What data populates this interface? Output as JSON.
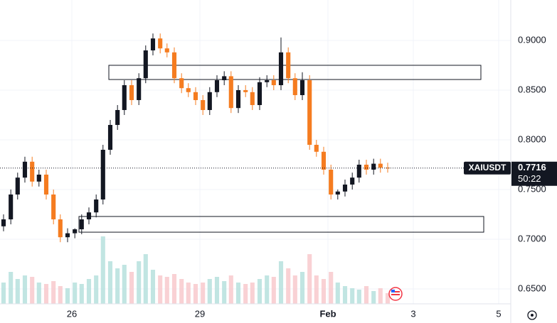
{
  "chart_data": {
    "type": "candlestick",
    "symbol": "XAIUSDT",
    "last_price": {
      "value": 0.7716,
      "label": "0.7716"
    },
    "countdown": "50:22",
    "up_color": "#131722",
    "down_color": "#f57c20",
    "grid": true,
    "xlim": [
      24.317,
      36.283
    ],
    "xticks": [
      26,
      29,
      {
        "value": 32,
        "label": "Feb"
      },
      {
        "value": 34,
        "label": "3"
      },
      {
        "value": 36,
        "label": "5"
      }
    ],
    "ylim": [
      0.635,
      0.9407
    ],
    "yticks": [
      {
        "value": 0.65,
        "label": "0.6500"
      },
      {
        "value": 0.7,
        "label": "0.7000"
      },
      {
        "value": 0.75,
        "label": "0.7500"
      },
      {
        "value": 0.8,
        "label": "0.8000"
      },
      {
        "value": 0.85,
        "label": "0.8500"
      },
      {
        "value": 0.9,
        "label": "0.9000"
      }
    ],
    "vlim": [
      0,
      120
    ],
    "x": [
      24.4,
      24.57,
      24.73,
      24.9,
      25.07,
      25.23,
      25.4,
      25.57,
      25.73,
      25.9,
      26.07,
      26.23,
      26.4,
      26.57,
      26.73,
      26.9,
      27.07,
      27.23,
      27.4,
      27.57,
      27.73,
      27.9,
      28.07,
      28.23,
      28.4,
      28.57,
      28.73,
      28.9,
      29.07,
      29.23,
      29.4,
      29.57,
      29.73,
      29.9,
      30.07,
      30.23,
      30.4,
      30.57,
      30.73,
      30.9,
      31.07,
      31.23,
      31.4,
      31.57,
      31.73,
      31.9,
      32.07,
      32.23,
      32.4,
      32.57,
      32.73,
      32.9,
      33.07,
      33.23,
      33.4
    ],
    "open": [
      0.713,
      0.72,
      0.745,
      0.762,
      0.778,
      0.758,
      0.765,
      0.745,
      0.72,
      0.702,
      0.706,
      0.71,
      0.72,
      0.727,
      0.74,
      0.79,
      0.815,
      0.83,
      0.855,
      0.84,
      0.862,
      0.89,
      0.902,
      0.892,
      0.888,
      0.862,
      0.852,
      0.848,
      0.84,
      0.83,
      0.848,
      0.86,
      0.864,
      0.832,
      0.85,
      0.848,
      0.835,
      0.858,
      0.86,
      0.855,
      0.888,
      0.862,
      0.845,
      0.86,
      0.795,
      0.788,
      0.77,
      0.745,
      0.748,
      0.755,
      0.762,
      0.775,
      0.77,
      0.776,
      0.772
    ],
    "high": [
      0.725,
      0.75,
      0.767,
      0.783,
      0.783,
      0.77,
      0.77,
      0.75,
      0.725,
      0.711,
      0.711,
      0.725,
      0.732,
      0.745,
      0.795,
      0.82,
      0.835,
      0.86,
      0.86,
      0.867,
      0.895,
      0.907,
      0.907,
      0.897,
      0.893,
      0.867,
      0.857,
      0.853,
      0.845,
      0.853,
      0.865,
      0.869,
      0.869,
      0.855,
      0.855,
      0.853,
      0.863,
      0.865,
      0.865,
      0.903,
      0.893,
      0.867,
      0.868,
      0.865,
      0.8,
      0.793,
      0.775,
      0.75,
      0.76,
      0.767,
      0.78,
      0.78,
      0.781,
      0.781,
      0.777
    ],
    "low": [
      0.708,
      0.715,
      0.74,
      0.757,
      0.753,
      0.753,
      0.74,
      0.715,
      0.697,
      0.697,
      0.701,
      0.705,
      0.715,
      0.722,
      0.735,
      0.785,
      0.81,
      0.825,
      0.835,
      0.835,
      0.857,
      0.885,
      0.887,
      0.883,
      0.857,
      0.847,
      0.843,
      0.835,
      0.825,
      0.825,
      0.843,
      0.855,
      0.827,
      0.827,
      0.843,
      0.83,
      0.83,
      0.853,
      0.85,
      0.85,
      0.857,
      0.84,
      0.84,
      0.79,
      0.783,
      0.765,
      0.74,
      0.74,
      0.743,
      0.75,
      0.757,
      0.765,
      0.765,
      0.767,
      0.767
    ],
    "close": [
      0.72,
      0.745,
      0.762,
      0.778,
      0.758,
      0.765,
      0.745,
      0.72,
      0.702,
      0.706,
      0.71,
      0.72,
      0.727,
      0.74,
      0.79,
      0.815,
      0.83,
      0.855,
      0.84,
      0.862,
      0.89,
      0.902,
      0.892,
      0.888,
      0.862,
      0.852,
      0.848,
      0.84,
      0.83,
      0.848,
      0.86,
      0.864,
      0.832,
      0.85,
      0.848,
      0.835,
      0.858,
      0.86,
      0.855,
      0.888,
      0.862,
      0.845,
      0.86,
      0.795,
      0.788,
      0.77,
      0.745,
      0.748,
      0.755,
      0.762,
      0.775,
      0.77,
      0.776,
      0.772,
      0.7716
    ],
    "volume": [
      30,
      45,
      35,
      40,
      38,
      30,
      28,
      32,
      25,
      22,
      30,
      28,
      35,
      40,
      95,
      60,
      50,
      55,
      45,
      60,
      70,
      48,
      40,
      38,
      42,
      35,
      30,
      28,
      30,
      35,
      38,
      32,
      40,
      30,
      28,
      30,
      35,
      40,
      38,
      60,
      50,
      40,
      45,
      70,
      40,
      35,
      45,
      30,
      25,
      22,
      20,
      25,
      18,
      22,
      15
    ],
    "zones": [
      {
        "x1": 26.867,
        "x2": 35.583,
        "y1": 0.8607,
        "y2": 0.875
      },
      {
        "x1": 26.167,
        "x2": 35.65,
        "y1": 0.7071,
        "y2": 0.7229
      }
    ]
  }
}
